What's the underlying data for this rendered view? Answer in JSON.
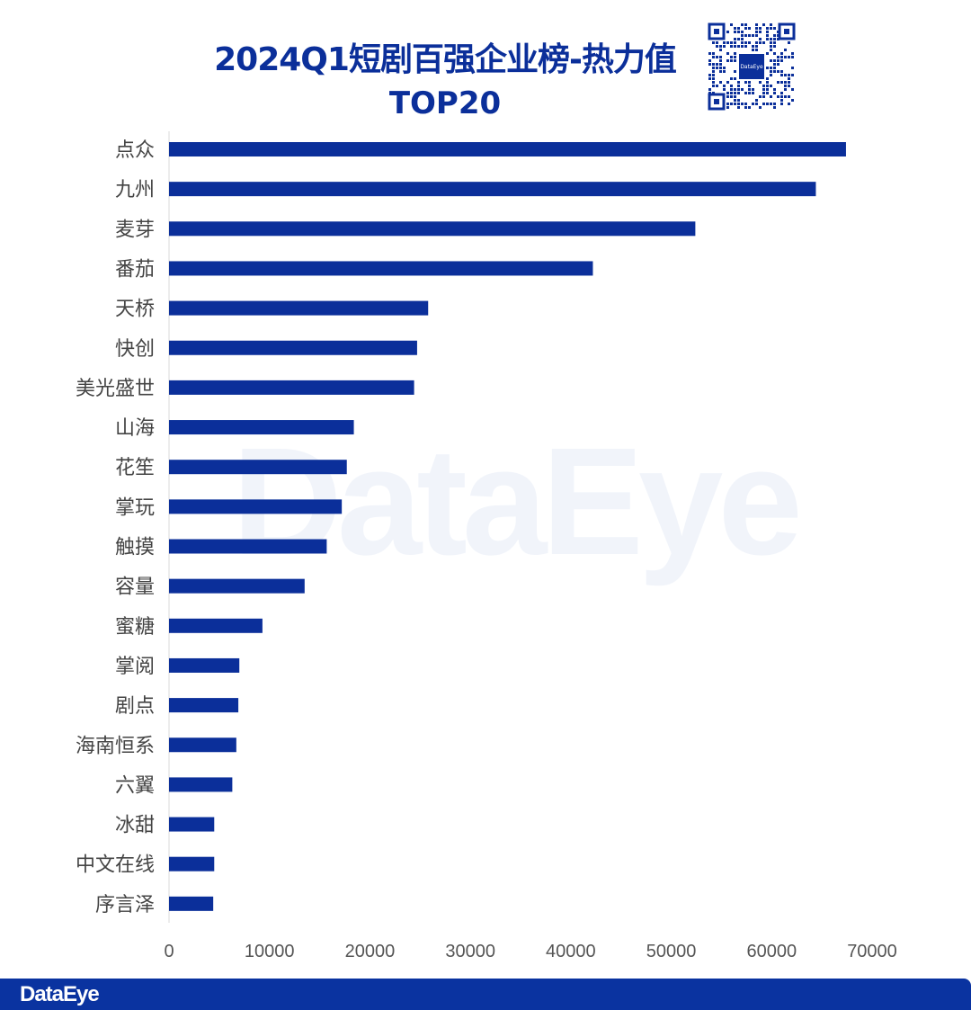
{
  "chart_data": {
    "type": "bar",
    "orientation": "horizontal",
    "title": "2024Q1短剧百强企业榜-热力值",
    "subtitle": "TOP20",
    "categories": [
      "点众",
      "九州",
      "麦芽",
      "番茄",
      "天桥",
      "快创",
      "美光盛世",
      "山海",
      "花笙",
      "掌玩",
      "触摸",
      "容量",
      "蜜糖",
      "掌阅",
      "剧点",
      "海南恒系",
      "六翼",
      "冰甜",
      "中文在线",
      "序言泽"
    ],
    "values": [
      67400,
      64400,
      52400,
      42200,
      25800,
      24700,
      24400,
      18400,
      17700,
      17200,
      15700,
      13500,
      9300,
      7000,
      6900,
      6700,
      6300,
      4500,
      4500,
      4400
    ],
    "xlim": [
      0,
      70000
    ],
    "xticks": [
      "0",
      "10000",
      "20000",
      "30000",
      "40000",
      "50000",
      "60000",
      "70000"
    ],
    "grid": false,
    "bar_color": "#0b2f9a"
  },
  "watermark": "DataEye",
  "qr_label": "DataEye",
  "footer": {
    "logo": "DataEye",
    "color": "#0a33a0"
  }
}
